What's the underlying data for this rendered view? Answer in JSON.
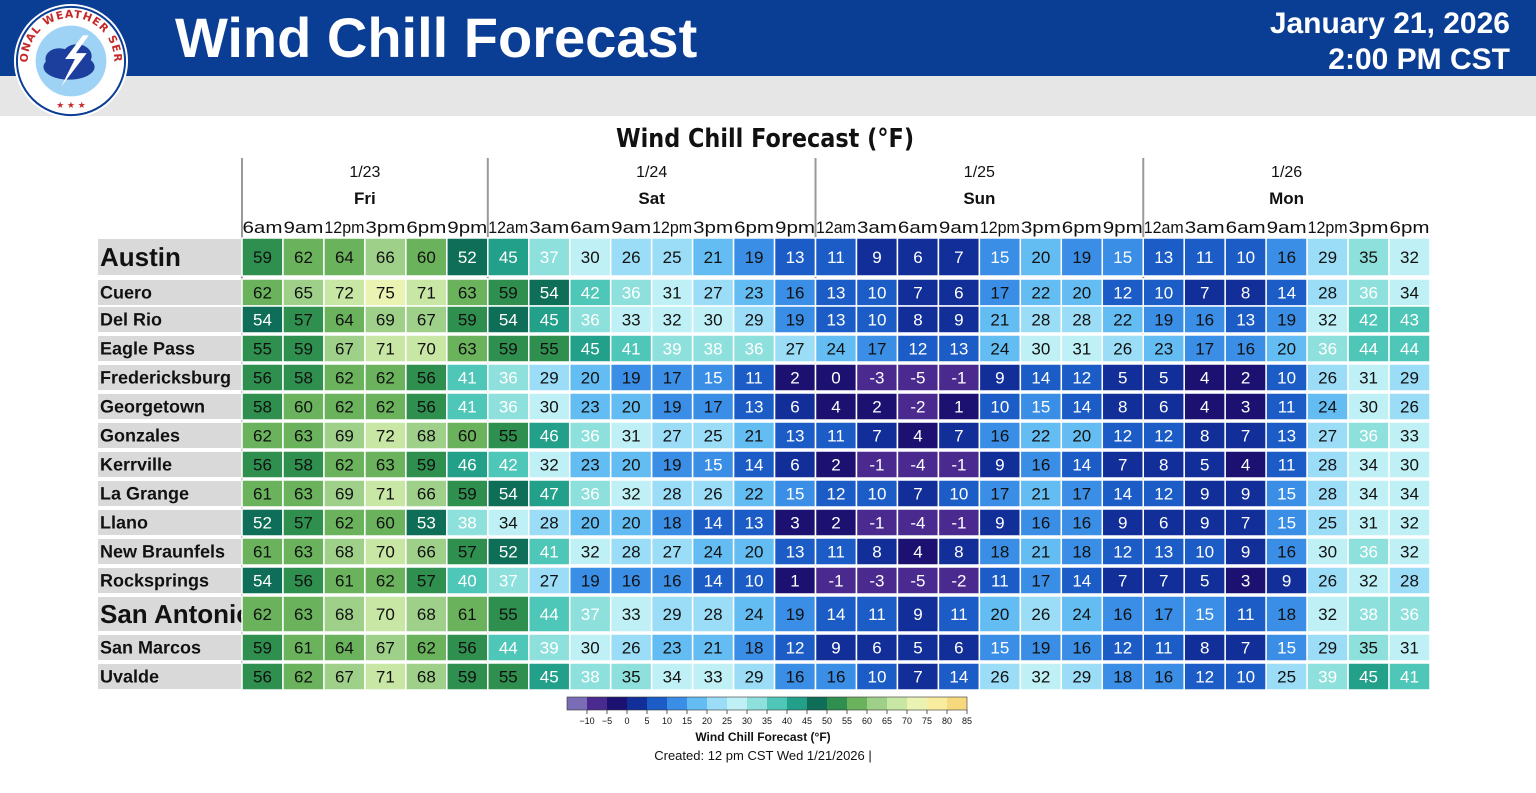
{
  "header": {
    "title": "Wind Chill Forecast",
    "date": "January 21, 2026",
    "time": "2:00 PM CST",
    "logo_text": "NATIONAL WEATHER SERVICE",
    "bg_color": "#0a3d94"
  },
  "chart_data": {
    "type": "heatmap",
    "title": "Wind Chill Forecast (°F)",
    "days": [
      {
        "date": "1/23",
        "name": "Fri",
        "hours": [
          "6am",
          "9am",
          "12pm",
          "3pm",
          "6pm",
          "9pm"
        ]
      },
      {
        "date": "1/24",
        "name": "Sat",
        "hours": [
          "12am",
          "3am",
          "6am",
          "9am",
          "12pm",
          "3pm",
          "6pm",
          "9pm"
        ]
      },
      {
        "date": "1/25",
        "name": "Sun",
        "hours": [
          "12am",
          "3am",
          "6am",
          "9am",
          "12pm",
          "3pm",
          "6pm",
          "9pm"
        ]
      },
      {
        "date": "1/26",
        "name": "Mon",
        "hours": [
          "12am",
          "3am",
          "6am",
          "9am",
          "12pm",
          "3pm",
          "6pm"
        ]
      }
    ],
    "rows": [
      {
        "name": "Austin",
        "major": true,
        "values": [
          59,
          62,
          64,
          66,
          60,
          52,
          45,
          37,
          30,
          26,
          25,
          21,
          19,
          13,
          11,
          9,
          6,
          7,
          15,
          20,
          19,
          15,
          13,
          11,
          10,
          16,
          29,
          35,
          32
        ]
      },
      {
        "name": "Cuero",
        "values": [
          62,
          65,
          72,
          75,
          71,
          63,
          59,
          54,
          42,
          36,
          31,
          27,
          23,
          16,
          13,
          10,
          7,
          6,
          17,
          22,
          20,
          12,
          10,
          7,
          8,
          14,
          28,
          36,
          34
        ]
      },
      {
        "name": "Del Rio",
        "values": [
          54,
          57,
          64,
          69,
          67,
          59,
          54,
          45,
          36,
          33,
          32,
          30,
          29,
          19,
          13,
          10,
          8,
          9,
          21,
          28,
          28,
          22,
          19,
          16,
          13,
          19,
          32,
          42,
          43
        ]
      },
      {
        "name": "Eagle Pass",
        "values": [
          55,
          59,
          67,
          71,
          70,
          63,
          59,
          55,
          45,
          41,
          39,
          38,
          36,
          27,
          24,
          17,
          12,
          13,
          24,
          30,
          31,
          26,
          23,
          17,
          16,
          20,
          36,
          44,
          44
        ]
      },
      {
        "name": "Fredericksburg",
        "values": [
          56,
          58,
          62,
          62,
          56,
          41,
          36,
          29,
          20,
          19,
          17,
          15,
          11,
          2,
          0,
          -3,
          -5,
          -1,
          9,
          14,
          12,
          5,
          5,
          4,
          2,
          10,
          26,
          31,
          29
        ]
      },
      {
        "name": "Georgetown",
        "values": [
          58,
          60,
          62,
          62,
          56,
          41,
          36,
          30,
          23,
          20,
          19,
          17,
          13,
          6,
          4,
          2,
          -2,
          1,
          10,
          15,
          14,
          8,
          6,
          4,
          3,
          11,
          24,
          30,
          26
        ]
      },
      {
        "name": "Gonzales",
        "values": [
          62,
          63,
          69,
          72,
          68,
          60,
          55,
          46,
          36,
          31,
          27,
          25,
          21,
          13,
          11,
          7,
          4,
          7,
          16,
          22,
          20,
          12,
          12,
          8,
          7,
          13,
          27,
          36,
          33
        ]
      },
      {
        "name": "Kerrville",
        "values": [
          56,
          58,
          62,
          63,
          59,
          46,
          42,
          32,
          23,
          20,
          19,
          15,
          14,
          6,
          2,
          -1,
          -4,
          -1,
          9,
          16,
          14,
          7,
          8,
          5,
          4,
          11,
          28,
          34,
          30
        ]
      },
      {
        "name": "La Grange",
        "values": [
          61,
          63,
          69,
          71,
          66,
          59,
          54,
          47,
          36,
          32,
          28,
          26,
          22,
          15,
          12,
          10,
          7,
          10,
          17,
          21,
          17,
          14,
          12,
          9,
          9,
          15,
          28,
          34,
          34
        ]
      },
      {
        "name": "Llano",
        "values": [
          52,
          57,
          62,
          60,
          53,
          38,
          34,
          28,
          20,
          20,
          18,
          14,
          13,
          3,
          2,
          -1,
          -4,
          -1,
          9,
          16,
          16,
          9,
          6,
          9,
          7,
          15,
          25,
          31,
          32
        ]
      },
      {
        "name": "New Braunfels",
        "values": [
          61,
          63,
          68,
          70,
          66,
          57,
          52,
          41,
          32,
          28,
          27,
          24,
          20,
          13,
          11,
          8,
          4,
          8,
          18,
          21,
          18,
          12,
          13,
          10,
          9,
          16,
          30,
          36,
          32
        ]
      },
      {
        "name": "Rocksprings",
        "values": [
          54,
          56,
          61,
          62,
          57,
          40,
          37,
          27,
          19,
          16,
          16,
          14,
          10,
          1,
          -1,
          -3,
          -5,
          -2,
          11,
          17,
          14,
          7,
          7,
          5,
          3,
          9,
          26,
          32,
          28
        ]
      },
      {
        "name": "San Antonio",
        "major": true,
        "values": [
          62,
          63,
          68,
          70,
          68,
          61,
          55,
          44,
          37,
          33,
          29,
          28,
          24,
          19,
          14,
          11,
          9,
          11,
          20,
          26,
          24,
          16,
          17,
          15,
          11,
          18,
          32,
          38,
          36
        ]
      },
      {
        "name": "San Marcos",
        "values": [
          59,
          61,
          64,
          67,
          62,
          56,
          44,
          39,
          30,
          26,
          23,
          21,
          18,
          12,
          9,
          6,
          5,
          6,
          15,
          19,
          16,
          12,
          11,
          8,
          7,
          15,
          29,
          35,
          31
        ]
      },
      {
        "name": "Uvalde",
        "values": [
          56,
          62,
          67,
          71,
          68,
          59,
          55,
          45,
          38,
          35,
          34,
          33,
          29,
          16,
          16,
          10,
          7,
          14,
          26,
          32,
          29,
          18,
          16,
          12,
          10,
          25,
          39,
          45,
          41
        ]
      }
    ],
    "colorbar": {
      "label": "Wind Chill Forecast (°F)",
      "ticks": [
        "−10",
        "−5",
        "0",
        "5",
        "10",
        "15",
        "20",
        "25",
        "30",
        "35",
        "40",
        "45",
        "50",
        "55",
        "60",
        "65",
        "70",
        "75",
        "80",
        "85"
      ],
      "colors": [
        "#7b6cb6",
        "#4b2a8f",
        "#1c1170",
        "#122e99",
        "#1c5cc6",
        "#3a8ee6",
        "#63bdf2",
        "#9bdcf7",
        "#bff0f5",
        "#8ee0dc",
        "#4ec7b8",
        "#22a08a",
        "#0f6e57",
        "#2f8f4e",
        "#6ab35c",
        "#9fd08a",
        "#c8e6a4",
        "#eaf3b2",
        "#f8ec9e",
        "#f6d97c"
      ]
    }
  },
  "footer": {
    "created": "Created: 12 pm CST Wed 1/21/2026  |"
  }
}
